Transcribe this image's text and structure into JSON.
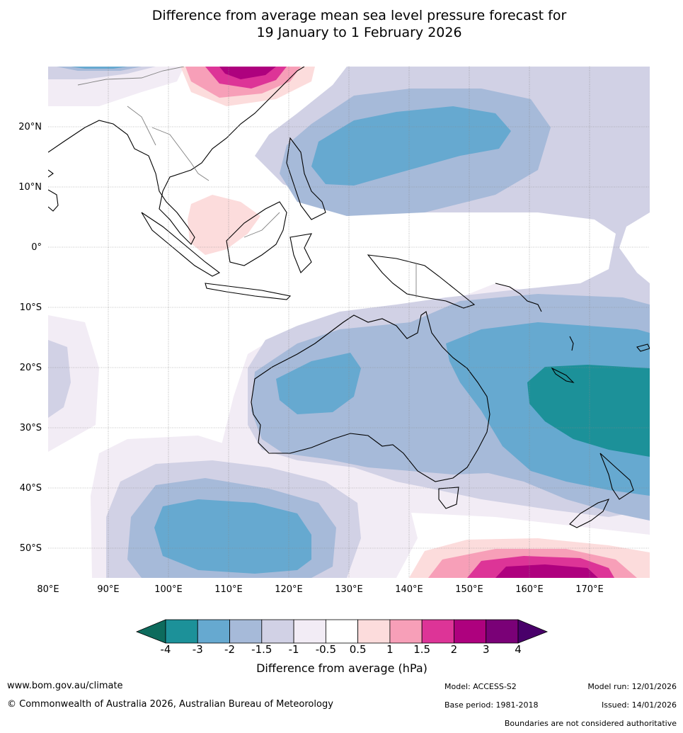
{
  "title": {
    "line1": "Difference from average mean sea level pressure forecast for",
    "line2": "19 January to 1 February 2026"
  },
  "map": {
    "lon_labels": [
      "80°E",
      "90°E",
      "100°E",
      "110°E",
      "120°E",
      "130°E",
      "140°E",
      "150°E",
      "160°E",
      "170°E"
    ],
    "lat_labels": [
      "20°N",
      "10°N",
      "0°",
      "10°S",
      "20°S",
      "30°S",
      "40°S",
      "50°S"
    ],
    "lon_range": [
      80,
      180
    ],
    "lat_range": [
      -55,
      30
    ]
  },
  "colorbar": {
    "ticks": [
      "-4",
      "-3",
      "-2",
      "-1.5",
      "-1",
      "-0.5",
      "0.5",
      "1",
      "1.5",
      "2",
      "3",
      "4"
    ],
    "colors": [
      "#0d6b5d",
      "#1c9199",
      "#66a9d0",
      "#a6bad9",
      "#d1d1e5",
      "#f2ecf5",
      "#ffffff",
      "#fcdcdc",
      "#f79fb8",
      "#dd3497",
      "#ae017e",
      "#7a0177",
      "#49006a"
    ],
    "label": "Difference from average (hPa)"
  },
  "footer": {
    "website": "www.bom.gov.au/climate",
    "copyright": "© Commonwealth of Australia 2026, Australian Bureau of Meteorology",
    "model": "Model: ACCESS-S2",
    "base_period": "Base period: 1981-2018",
    "model_run": "Model run: 12/01/2026",
    "issued": "Issued: 14/01/2026",
    "disclaimer": "Boundaries are not considered authoritative"
  }
}
